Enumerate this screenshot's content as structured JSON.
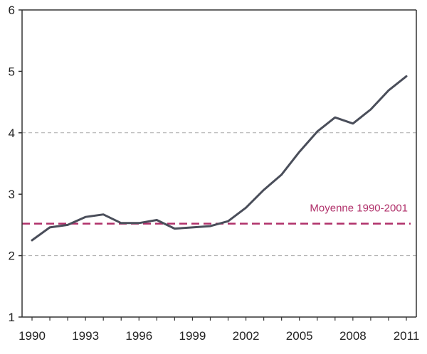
{
  "chart_data": {
    "type": "line",
    "title": "",
    "xlabel": "",
    "ylabel": "",
    "xlim": [
      1990,
      2011
    ],
    "ylim": [
      1,
      6
    ],
    "x_ticks": [
      1990,
      1993,
      1996,
      1999,
      2002,
      2005,
      2008,
      2011
    ],
    "x_tick_labels": [
      "1990",
      "1993",
      "1996",
      "1999",
      "2002",
      "2005",
      "2008",
      "2011"
    ],
    "y_ticks": [
      1,
      2,
      3,
      4,
      5,
      6
    ],
    "y_tick_labels": [
      "1",
      "2",
      "3",
      "4",
      "5",
      "6"
    ],
    "grid": "dashed horizontal at 2 and 4",
    "series": [
      {
        "color": "#4a4e5a",
        "x": [
          1990,
          1991,
          1992,
          1993,
          1994,
          1995,
          1996,
          1997,
          1998,
          1999,
          2000,
          2001,
          2002,
          2003,
          2004,
          2005,
          2006,
          2007,
          2008,
          2009,
          2010,
          2011
        ],
        "values": [
          2.25,
          2.46,
          2.5,
          2.63,
          2.67,
          2.53,
          2.53,
          2.58,
          2.44,
          2.46,
          2.48,
          2.56,
          2.78,
          3.07,
          3.32,
          3.69,
          4.02,
          4.25,
          4.15,
          4.38,
          4.69,
          4.92
        ]
      }
    ],
    "reference_line": {
      "label": "Moyenne 1990-2001",
      "value": 2.52,
      "color": "#b0306a",
      "style": "dashed"
    }
  }
}
